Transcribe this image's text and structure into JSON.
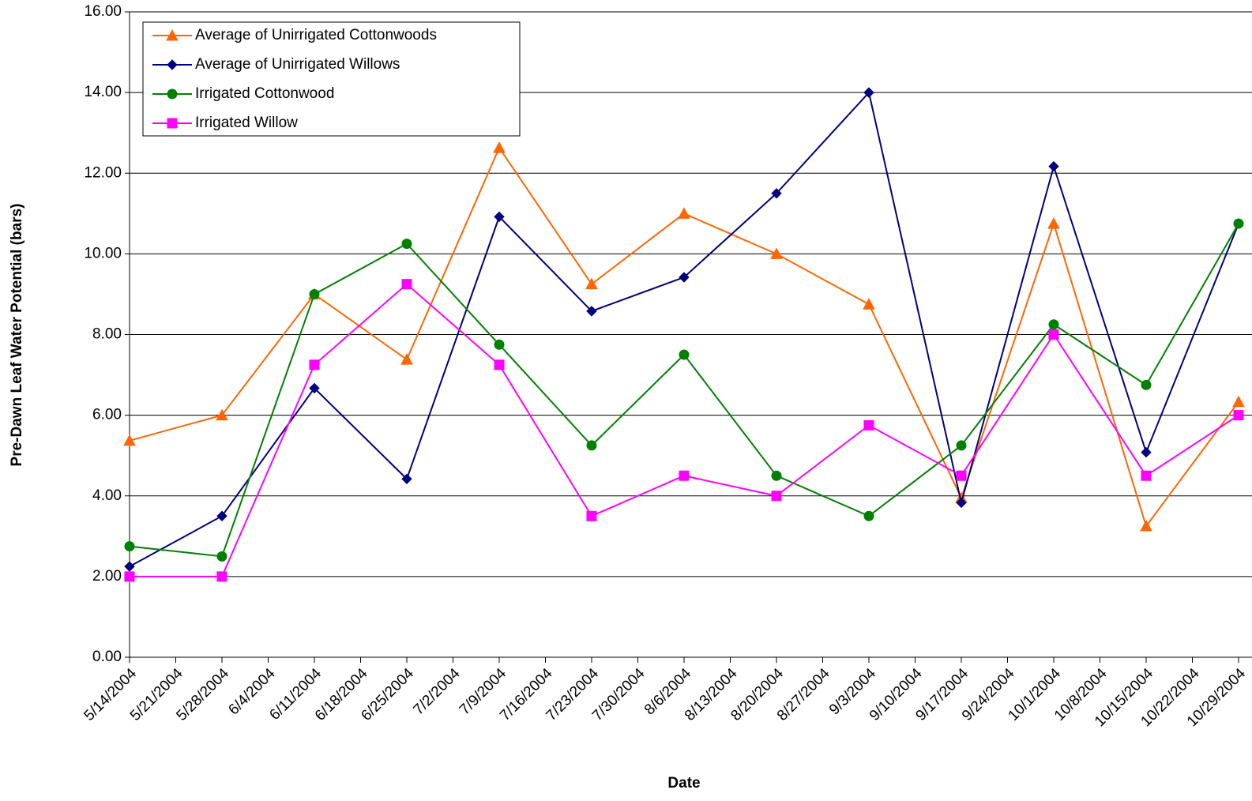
{
  "chart_data": {
    "type": "line",
    "x_label": "Date",
    "y_label": "Pre-Dawn Leaf Water Potential (bars)",
    "x": [
      "5/14/2004",
      "5/28/2004",
      "6/11/2004",
      "6/25/2004",
      "7/9/2004",
      "7/23/2004",
      "8/6/2004",
      "8/20/2004",
      "9/3/2004",
      "9/17/2004",
      "10/1/2004",
      "10/15/2004",
      "10/29/2004"
    ],
    "xlim": [
      "5/14/2004",
      "10/29/2004"
    ],
    "xticks": [
      "5/14/2004",
      "5/21/2004",
      "5/28/2004",
      "6/4/2004",
      "6/11/2004",
      "6/18/2004",
      "6/25/2004",
      "7/2/2004",
      "7/9/2004",
      "7/16/2004",
      "7/23/2004",
      "7/30/2004",
      "8/6/2004",
      "8/13/2004",
      "8/20/2004",
      "8/27/2004",
      "9/3/2004",
      "9/10/2004",
      "9/17/2004",
      "9/24/2004",
      "10/1/2004",
      "10/8/2004",
      "10/15/2004",
      "10/22/2004",
      "10/29/2004"
    ],
    "ylim": [
      0,
      16
    ],
    "yticks": [
      {
        "value": 0,
        "label": "0.00"
      },
      {
        "value": 2,
        "label": "2.00"
      },
      {
        "value": 4,
        "label": "4.00"
      },
      {
        "value": 6,
        "label": "6.00"
      },
      {
        "value": 8,
        "label": "8.00"
      },
      {
        "value": 10,
        "label": "10.00"
      },
      {
        "value": 12,
        "label": "12.00"
      },
      {
        "value": 14,
        "label": "14.00"
      },
      {
        "value": 16,
        "label": "16.00"
      }
    ],
    "grid": true,
    "legend": "top-left",
    "series": [
      {
        "name": "Average of Unirrigated Cottonwoods",
        "color": "#ff6600",
        "marker": "triangle",
        "values": [
          5.37,
          6.0,
          9.0,
          7.38,
          12.63,
          9.25,
          11.0,
          10.0,
          8.75,
          3.95,
          10.75,
          3.25,
          6.33
        ]
      },
      {
        "name": "Average of Unirrigated Willows",
        "color": "#000080",
        "marker": "diamond",
        "values": [
          2.25,
          3.5,
          6.67,
          4.42,
          10.92,
          8.58,
          9.42,
          11.5,
          14.0,
          3.83,
          12.17,
          5.08,
          10.75
        ]
      },
      {
        "name": "Irrigated Cottonwood",
        "color": "#008000",
        "marker": "circle",
        "values": [
          2.75,
          2.5,
          9.0,
          10.25,
          7.75,
          5.25,
          7.5,
          4.5,
          3.5,
          5.25,
          8.25,
          6.75,
          10.75
        ]
      },
      {
        "name": "Irrigated Willow",
        "color": "#ff00ff",
        "marker": "square",
        "values": [
          2.0,
          2.0,
          7.25,
          9.25,
          7.25,
          3.5,
          4.5,
          4.0,
          5.75,
          4.5,
          8.0,
          4.5,
          6.0
        ]
      }
    ]
  }
}
